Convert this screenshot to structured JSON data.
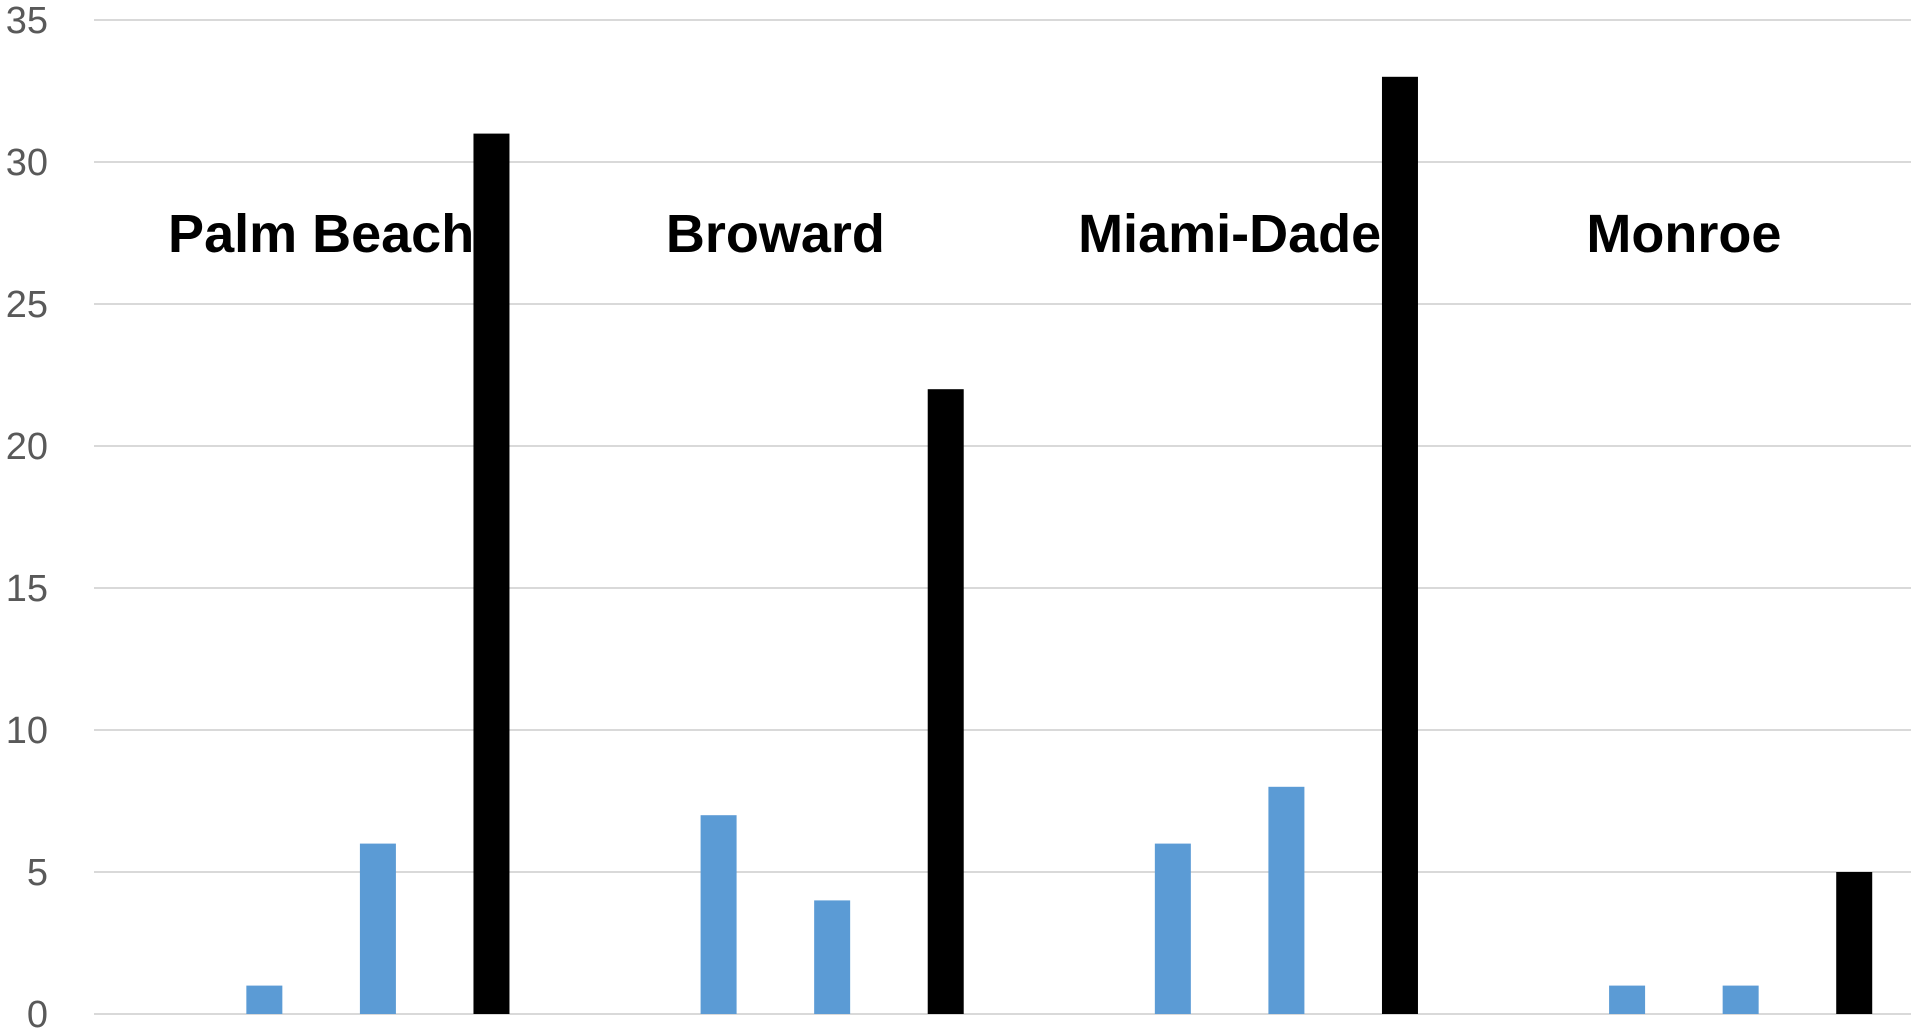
{
  "chart_data": {
    "type": "bar",
    "title": "",
    "xlabel": "",
    "ylabel": "",
    "ylim": [
      0,
      35
    ],
    "yticks": [
      0,
      5,
      10,
      15,
      20,
      25,
      30,
      35
    ],
    "grid": true,
    "legend": "none",
    "groups": [
      {
        "label": "Palm Beach",
        "bars": [
          {
            "value": 0,
            "color": "#5b9bd5"
          },
          {
            "value": 1,
            "color": "#5b9bd5"
          },
          {
            "value": 6,
            "color": "#5b9bd5"
          },
          {
            "value": 31,
            "color": "#000000"
          }
        ]
      },
      {
        "label": "Broward",
        "bars": [
          {
            "value": 0,
            "color": "#5b9bd5"
          },
          {
            "value": 7,
            "color": "#5b9bd5"
          },
          {
            "value": 4,
            "color": "#5b9bd5"
          },
          {
            "value": 22,
            "color": "#000000"
          }
        ]
      },
      {
        "label": "Miami-Dade",
        "bars": [
          {
            "value": 0,
            "color": "#5b9bd5"
          },
          {
            "value": 6,
            "color": "#5b9bd5"
          },
          {
            "value": 8,
            "color": "#5b9bd5"
          },
          {
            "value": 33,
            "color": "#000000"
          }
        ]
      },
      {
        "label": "Monroe",
        "bars": [
          {
            "value": 0,
            "color": "#5b9bd5"
          },
          {
            "value": 1,
            "color": "#5b9bd5"
          },
          {
            "value": 1,
            "color": "#5b9bd5"
          },
          {
            "value": 5,
            "color": "#000000"
          }
        ]
      }
    ]
  }
}
